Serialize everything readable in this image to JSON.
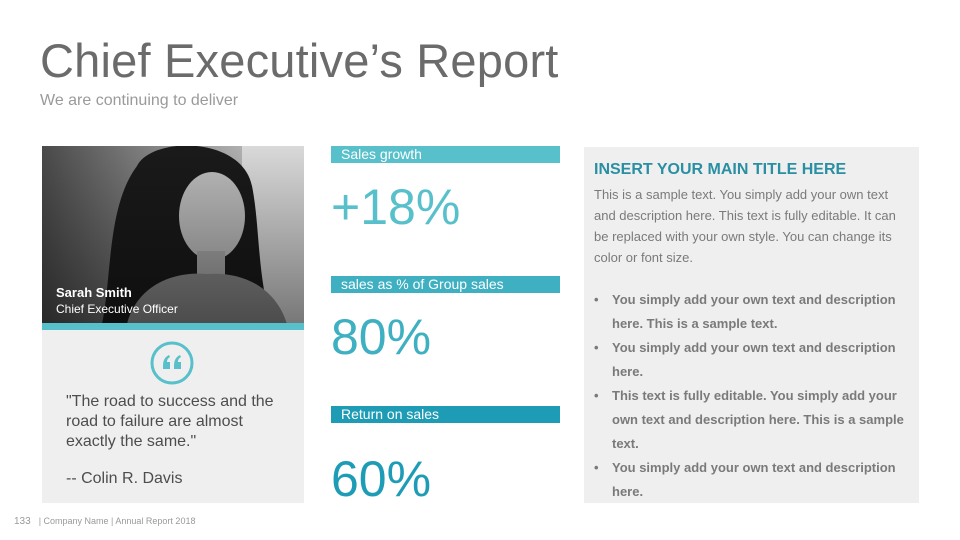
{
  "header": {
    "title": "Chief Executive’s Report",
    "subtitle": "We are continuing to deliver"
  },
  "profile": {
    "name": "Sarah Smith",
    "role": "Chief Executive Officer",
    "quote": "\"The road to success and the road to failure are almost exactly the same.\"",
    "author": "-- Colin R. Davis"
  },
  "stats": [
    {
      "label": "Sales growth",
      "value": "+18%",
      "bar_color": "#58c0cb",
      "value_color": "#58c0cb"
    },
    {
      "label": "sales as % of Group sales",
      "value": "80%",
      "bar_color": "#3fb0c1",
      "value_color": "#3fb0c1"
    },
    {
      "label": "Return on sales",
      "value": "60%",
      "bar_color": "#1f9cb5",
      "value_color": "#1f9cb5"
    }
  ],
  "panel": {
    "title": "INSERT YOUR MAIN TITLE HERE",
    "description": "This is a sample text. You simply add your own text and description here. This text is fully editable. It can be replaced with your own style. You can change its color or font size.",
    "bullets": [
      "You simply add your own text and description here. This is a sample text.",
      "You simply add your own text and description here.",
      "This text is fully editable. You simply add your own text and description here. This is a sample text.",
      "You simply add your own text and description here."
    ]
  },
  "footer": {
    "page_number": "133",
    "text": "| Company Name | Annual Report 2018"
  },
  "icons": {
    "quote": "quote-icon",
    "bullet": "bullet-dot"
  }
}
